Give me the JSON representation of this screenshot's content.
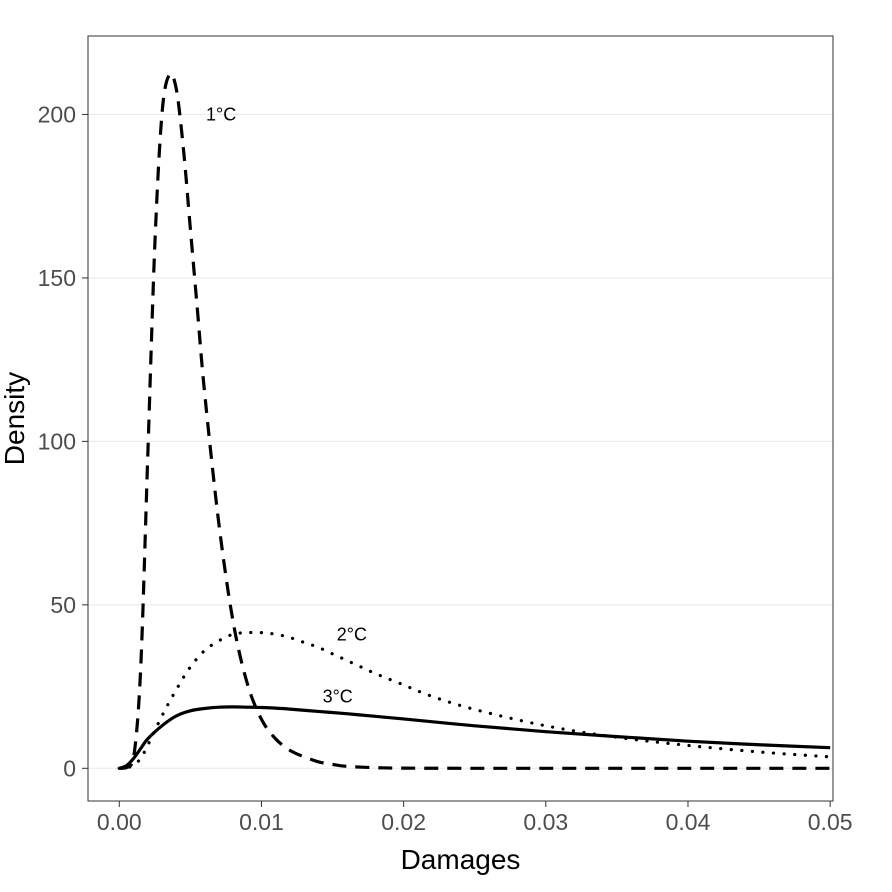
{
  "chart_data": {
    "type": "line",
    "title": "",
    "xlabel": "Damages",
    "ylabel": "Density",
    "xlim": [
      -0.0022,
      0.0502
    ],
    "ylim": [
      -10,
      224
    ],
    "x_ticks": [
      0.0,
      0.01,
      0.02,
      0.03,
      0.04,
      0.05
    ],
    "x_tick_labels": [
      "0.00",
      "0.01",
      "0.02",
      "0.03",
      "0.04",
      "0.05"
    ],
    "y_ticks": [
      0,
      50,
      100,
      150,
      200
    ],
    "y_tick_labels": [
      "0",
      "50",
      "100",
      "150",
      "200"
    ],
    "grid": "horizontal major lines",
    "legend": "none (series labelled directly on the plot)",
    "series": [
      {
        "name": "1°C",
        "line_style": "dashed",
        "label_at": {
          "x": 0.0061,
          "y": 200
        },
        "x": [
          0.0,
          0.0005,
          0.001,
          0.0015,
          0.002,
          0.0025,
          0.003,
          0.0035,
          0.004,
          0.0045,
          0.005,
          0.0055,
          0.006,
          0.007,
          0.008,
          0.009,
          0.01,
          0.011,
          0.012,
          0.013,
          0.014,
          0.015,
          0.016,
          0.018,
          0.02,
          0.025,
          0.03,
          0.04,
          0.05
        ],
        "y": [
          0,
          0.2,
          3,
          30,
          95,
          160,
          200,
          212,
          208,
          190,
          165,
          140,
          115,
          75,
          45,
          26,
          15,
          9,
          5.5,
          3.5,
          2,
          1.2,
          0.6,
          0.2,
          0.05,
          0,
          0,
          0,
          0
        ]
      },
      {
        "name": "2°C",
        "line_style": "dotted",
        "label_at": {
          "x": 0.0153,
          "y": 41
        },
        "x": [
          0.0,
          0.0005,
          0.001,
          0.0015,
          0.002,
          0.003,
          0.004,
          0.005,
          0.006,
          0.007,
          0.008,
          0.009,
          0.01,
          0.011,
          0.012,
          0.013,
          0.014,
          0.015,
          0.016,
          0.017,
          0.018,
          0.02,
          0.022,
          0.025,
          0.03,
          0.035,
          0.04,
          0.045,
          0.05
        ],
        "y": [
          0,
          0.1,
          1,
          3,
          7,
          16,
          24,
          31,
          36,
          39,
          41,
          41.5,
          41.5,
          41,
          40,
          38.5,
          37,
          35,
          33,
          31,
          29,
          25.5,
          22,
          18,
          13,
          9.5,
          7,
          5,
          3.5
        ]
      },
      {
        "name": "3°C",
        "line_style": "solid",
        "label_at": {
          "x": 0.0143,
          "y": 22
        },
        "x": [
          0.0,
          0.0005,
          0.001,
          0.0015,
          0.002,
          0.003,
          0.004,
          0.005,
          0.006,
          0.007,
          0.008,
          0.009,
          0.01,
          0.011,
          0.012,
          0.014,
          0.016,
          0.018,
          0.02,
          0.025,
          0.03,
          0.035,
          0.04,
          0.045,
          0.05
        ],
        "y": [
          0,
          0.8,
          3,
          6,
          9,
          13,
          16,
          17.6,
          18.3,
          18.7,
          18.8,
          18.7,
          18.6,
          18.4,
          18.1,
          17.4,
          16.7,
          15.9,
          15.1,
          13,
          11.2,
          9.7,
          8.3,
          7.2,
          6.3
        ]
      }
    ]
  }
}
